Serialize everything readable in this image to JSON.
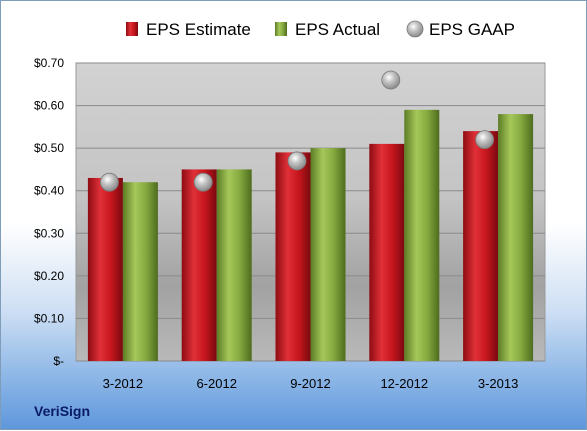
{
  "brand": "VeriSign",
  "colors": {
    "estimate": "#c0141c",
    "actual": "#7fa33a",
    "gaap": "#a9a9a9"
  },
  "chart_data": {
    "type": "bar",
    "categories": [
      "3-2012",
      "6-2012",
      "9-2012",
      "12-2012",
      "3-2013"
    ],
    "series": [
      {
        "name": "EPS Estimate",
        "type": "bar",
        "values": [
          0.43,
          0.45,
          0.49,
          0.51,
          0.54
        ]
      },
      {
        "name": "EPS Actual",
        "type": "bar",
        "values": [
          0.42,
          0.45,
          0.5,
          0.59,
          0.58
        ]
      },
      {
        "name": "EPS GAAP",
        "type": "scatter",
        "values": [
          0.42,
          0.42,
          0.47,
          0.66,
          0.52
        ]
      }
    ],
    "ylim": [
      0,
      0.7
    ],
    "yticks": [
      0,
      0.1,
      0.2,
      0.3,
      0.4,
      0.5,
      0.6,
      0.7
    ],
    "ytick_labels": [
      "$-",
      "$0.10",
      "$0.20",
      "$0.30",
      "$0.40",
      "$0.50",
      "$0.60",
      "$0.70"
    ],
    "legend_position": "top",
    "grid": true
  }
}
